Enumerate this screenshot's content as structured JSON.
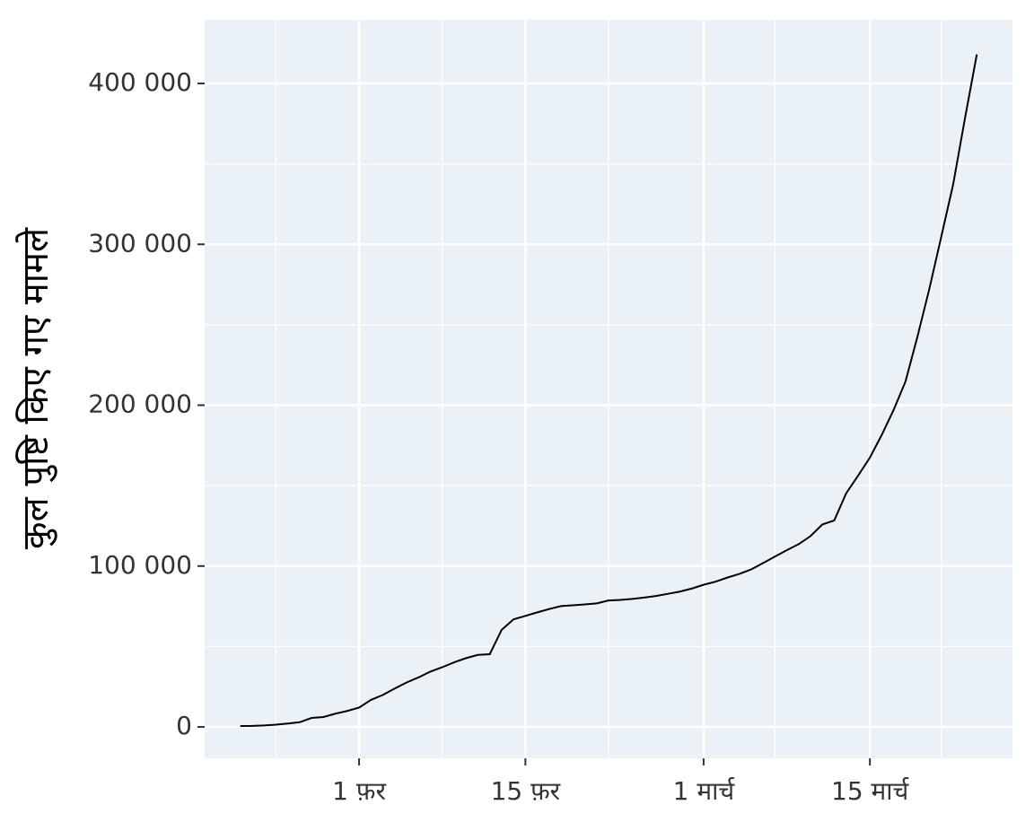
{
  "chart_data": {
    "type": "line",
    "ylabel": "कुल पुष्टि किए गए मामले",
    "x": [
      "01-22",
      "01-23",
      "01-24",
      "01-25",
      "01-26",
      "01-27",
      "01-28",
      "01-29",
      "01-30",
      "01-31",
      "02-01",
      "02-02",
      "02-03",
      "02-04",
      "02-05",
      "02-06",
      "02-07",
      "02-08",
      "02-09",
      "02-10",
      "02-11",
      "02-12",
      "02-13",
      "02-14",
      "02-15",
      "02-16",
      "02-17",
      "02-18",
      "02-19",
      "02-20",
      "02-21",
      "02-22",
      "02-23",
      "02-24",
      "02-25",
      "02-26",
      "02-27",
      "02-28",
      "02-29",
      "03-01",
      "03-02",
      "03-03",
      "03-04",
      "03-05",
      "03-06",
      "03-07",
      "03-08",
      "03-09",
      "03-10",
      "03-11",
      "03-12",
      "03-13",
      "03-14",
      "03-15",
      "03-16",
      "03-17",
      "03-18",
      "03-19",
      "03-20",
      "03-21",
      "03-22",
      "03-23",
      "03-24"
    ],
    "series": [
      {
        "color": "#000000",
        "values": [
          555,
          654,
          941,
          1434,
          2118,
          2927,
          5578,
          6166,
          8234,
          9927,
          12038,
          16787,
          19881,
          23892,
          27635,
          30794,
          34391,
          37120,
          40150,
          42762,
          44802,
          45221,
          60368,
          66885,
          69030,
          71224,
          73258,
          75136,
          75639,
          76197,
          76823,
          78579,
          78965,
          79568,
          80413,
          81395,
          82754,
          84120,
          86011,
          88369,
          90306,
          92840,
          95120,
          97886,
          101801,
          105847,
          109821,
          113590,
          118620,
          125875,
          128352,
          145205,
          156101,
          167454,
          181574,
          197102,
          214821,
          242570,
          272208,
          304507,
          336953,
          378235,
          418045
        ]
      }
    ],
    "xlim": [
      "01-19",
      "03-27"
    ],
    "xticks": [
      {
        "value": "02-01",
        "label": "1 फ़र"
      },
      {
        "value": "02-15",
        "label": "15 फ़र"
      },
      {
        "value": "03-01",
        "label": "1 मार्च"
      },
      {
        "value": "03-15",
        "label": "15 मार्च"
      }
    ],
    "ylim": [
      -19500,
      439600
    ],
    "yticks": [
      0,
      {
        "value": 100000,
        "label": "100 000"
      },
      {
        "value": 200000,
        "label": "200 000"
      },
      {
        "value": 300000,
        "label": "300 000"
      },
      {
        "value": 400000,
        "label": "400 000"
      }
    ],
    "grid": true,
    "minor_grid": true,
    "panel_color": "#ebf2f7"
  }
}
